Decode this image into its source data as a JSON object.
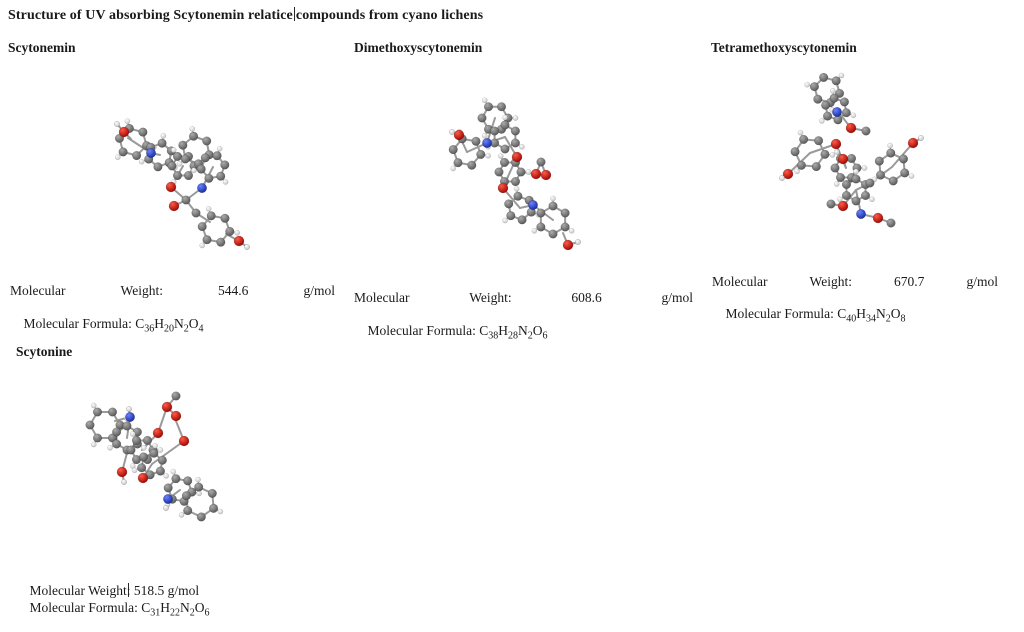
{
  "title": {
    "part_before_cursor": "Structure of UV absorbing Scytonemin relatice",
    "part_after_cursor": "compounds from cyano lichens"
  },
  "labels": {
    "molecular": "Molecular",
    "weight": "Weight:",
    "unit": "g/mol",
    "formula_prefix": "Molecular Formula: ",
    "weight_prefix": "Molecular Weight",
    "colon_space": ": ",
    "space": " "
  },
  "compounds": [
    {
      "name": "Scytonemin",
      "molecular_weight": "544.6",
      "unit": "g/mol",
      "formula": "C36H20N2O4"
    },
    {
      "name": "Dimethoxyscytonemin",
      "molecular_weight": "608.6",
      "unit": "g/mol",
      "formula": "C38H28N2O6"
    },
    {
      "name": "Tetramethoxyscytonemin",
      "molecular_weight": "670.7",
      "unit": "g/mol",
      "formula": "C40H34N2O8"
    },
    {
      "name": "Scytonine",
      "molecular_weight": "518.5",
      "unit": "g/mol",
      "formula": "C31H22N2O6"
    }
  ],
  "colors": {
    "text": "#1a1a1a",
    "background": "#ffffff",
    "oxygen": "#c81208",
    "nitrogen": "#2743d0",
    "carbon": "#6b6b6b",
    "hydrogen": "#ebebeb",
    "bond": "#9a9a9a"
  }
}
